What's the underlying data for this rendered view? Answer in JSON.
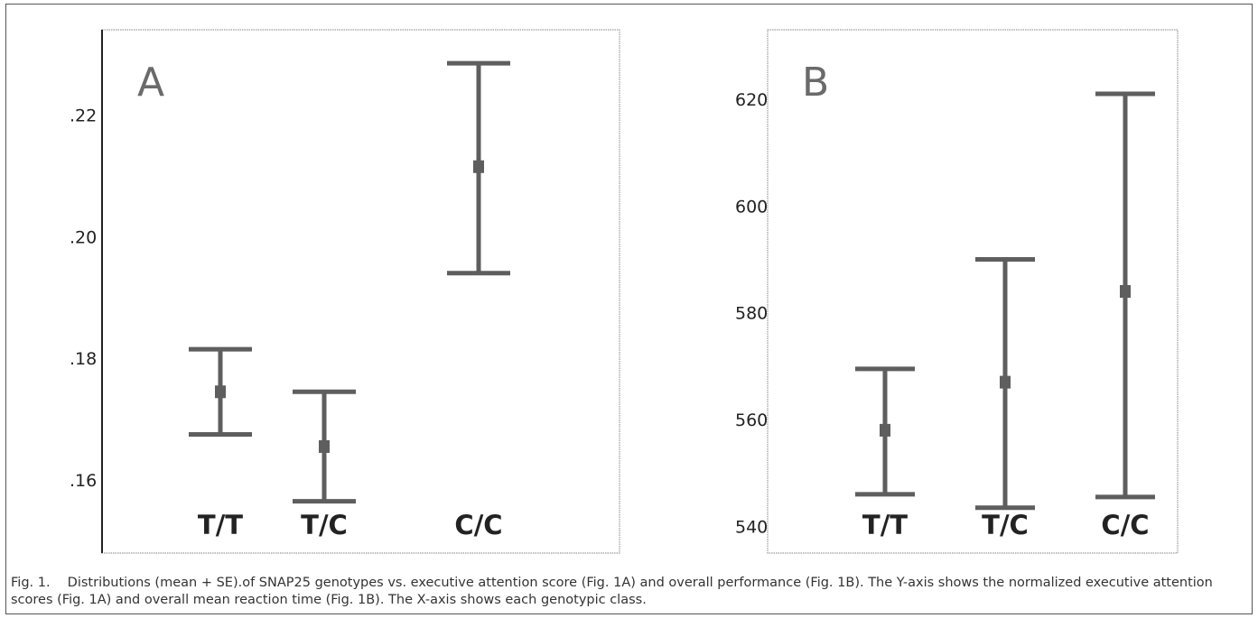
{
  "caption": "Fig. 1.  Distributions (mean + SE).of SNAP25 genotypes vs. executive attention score (Fig. 1A) and overall performance (Fig. 1B). The Y-axis shows the normalized executive attention scores (Fig. 1A) and overall mean reaction time (Fig. 1B). The X-axis shows each genotypic class.",
  "colors": {
    "errorbar": "#5e5e5e",
    "frame": "#555555",
    "panel_border": "#9a9a9a"
  },
  "chart_data": [
    {
      "type": "errorbar",
      "panel_label": "A",
      "categories": [
        "T/T",
        "T/C",
        "C/C"
      ],
      "yticks": [
        ".16",
        ".18",
        ".20",
        ".22"
      ],
      "ytick_values": [
        0.16,
        0.18,
        0.2,
        0.22
      ],
      "ylim": [
        0.148,
        0.234
      ],
      "series": [
        {
          "mean": [
            0.1745,
            0.1655,
            0.2115
          ],
          "lower": [
            0.1675,
            0.1565,
            0.194
          ],
          "upper": [
            0.1815,
            0.1745,
            0.2285
          ]
        }
      ]
    },
    {
      "type": "errorbar",
      "panel_label": "B",
      "categories": [
        "T/T",
        "T/C",
        "C/C"
      ],
      "yticks": [
        "540",
        "560",
        "580",
        "600",
        "620"
      ],
      "ytick_values": [
        540,
        560,
        580,
        600,
        620
      ],
      "ylim": [
        535,
        633
      ],
      "series": [
        {
          "mean": [
            558,
            567,
            584
          ],
          "lower": [
            546,
            543.5,
            545.5
          ],
          "upper": [
            569.5,
            590,
            621
          ]
        }
      ]
    }
  ]
}
